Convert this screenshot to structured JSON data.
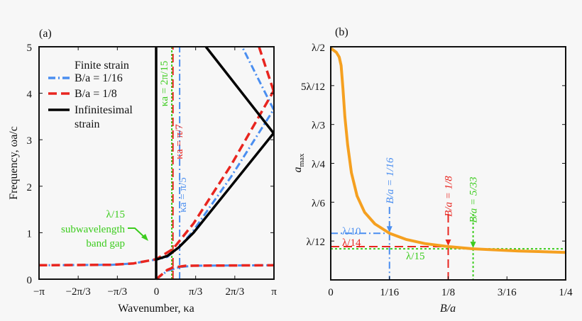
{
  "colors": {
    "blue": "#4a8ef0",
    "red": "#e8251f",
    "green": "#3ccc1e",
    "black": "#000000",
    "orange": "#f5a020"
  },
  "chart_data": [
    {
      "type": "line",
      "panel_label": "(a)",
      "xlabel": "Wavenumber, κa",
      "ylabel": "Frequency, ωa/c",
      "xlim_over_pi": [
        -1,
        1
      ],
      "ylim": [
        0,
        5
      ],
      "xtick_labels": [
        "−π",
        "−2π/3",
        "−π/3",
        "0",
        "π/3",
        "2π/3",
        "π"
      ],
      "ytick_labels": [
        "0",
        "1",
        "2",
        "3",
        "4",
        "5"
      ],
      "legend": {
        "title": "Finite strain",
        "entries": [
          "B/a = 1/16",
          "B/a = 1/8",
          "Infinitesimal",
          "strain"
        ],
        "placement": "top-left"
      },
      "series": [
        {
          "name": "B/a = 1/16",
          "color": "blue",
          "style": "dashdot",
          "branches": [
            [
              [
                -3.1416,
                0.3
              ],
              [
                -1.2,
                0.31
              ],
              [
                -0.6,
                0.34
              ],
              [
                -0.2,
                0.4
              ],
              [
                0,
                0.42
              ],
              [
                0.3,
                0.48
              ],
              [
                0.628,
                0.7
              ],
              [
                1.0,
                1.05
              ],
              [
                2.0,
                2.2
              ],
              [
                3.1416,
                3.65
              ]
            ],
            [
              [
                0,
                0
              ],
              [
                0.3,
                0.18
              ],
              [
                0.628,
                0.26
              ],
              [
                1.0,
                0.29
              ],
              [
                3.1416,
                0.3
              ]
            ],
            [
              [
                3.1416,
                3.65
              ],
              [
                2.3,
                5
              ]
            ],
            [
              [
                0.628,
                0
              ],
              [
                0.628,
                5
              ]
            ]
          ]
        },
        {
          "name": "B/a = 1/8",
          "color": "red",
          "style": "dashed",
          "branches": [
            [
              [
                -3.1416,
                0.3
              ],
              [
                -1.2,
                0.31
              ],
              [
                -0.6,
                0.34
              ],
              [
                -0.2,
                0.4
              ],
              [
                0,
                0.43
              ],
              [
                0.449,
                0.65
              ],
              [
                1.0,
                1.2
              ],
              [
                2.0,
                2.45
              ],
              [
                3.1416,
                4.05
              ]
            ],
            [
              [
                0,
                0
              ],
              [
                0.3,
                0.2
              ],
              [
                0.449,
                0.25
              ],
              [
                0.8,
                0.29
              ],
              [
                3.1416,
                0.3
              ]
            ],
            [
              [
                3.1416,
                4.05
              ],
              [
                2.75,
                5
              ]
            ],
            [
              [
                0.449,
                0
              ],
              [
                0.449,
                5
              ]
            ]
          ]
        },
        {
          "name": "Infinitesimal strain",
          "color": "black",
          "style": "solid",
          "branches": [
            [
              [
                0,
                0.42
              ],
              [
                0.3,
                0.5
              ],
              [
                0.6,
                0.68
              ],
              [
                1.0,
                1.0
              ],
              [
                2.0,
                2.0
              ],
              [
                3.1416,
                3.14
              ]
            ],
            [
              [
                3.1416,
                3.14
              ],
              [
                1.33,
                5
              ]
            ],
            [
              [
                0,
                0
              ],
              [
                0,
                5
              ]
            ]
          ]
        }
      ],
      "annotations": [
        {
          "text": "κa = 2π/15",
          "color": "green",
          "x": 0.419
        },
        {
          "text": "κa = π/7",
          "color": "red",
          "x": 0.449
        },
        {
          "text": "κa = π/5",
          "color": "blue",
          "x": 0.628
        },
        {
          "text": "λ/15",
          "color": "green"
        },
        {
          "text": "subwavelength",
          "color": "green"
        },
        {
          "text": "band gap",
          "color": "green"
        }
      ]
    },
    {
      "type": "line",
      "panel_label": "(b)",
      "xlabel": "B/a",
      "ylabel": "a_max",
      "xlim": [
        0,
        0.25
      ],
      "ylim_in_lambda": [
        0,
        0.5
      ],
      "xtick_labels": [
        "0",
        "1/16",
        "1/8",
        "3/16",
        "1/4"
      ],
      "ytick_labels": [
        "",
        "λ/12",
        "λ/6",
        "λ/4",
        "λ/3",
        "5λ/12",
        "λ/2"
      ],
      "ylabel_main": "a",
      "ylabel_sub": "max",
      "series": [
        {
          "color": "orange",
          "style": "solid",
          "points": [
            [
              0,
              0.497
            ],
            [
              0.006,
              0.488
            ],
            [
              0.009,
              0.478
            ],
            [
              0.011,
              0.46
            ],
            [
              0.013,
              0.41
            ],
            [
              0.015,
              0.35
            ],
            [
              0.018,
              0.29
            ],
            [
              0.022,
              0.23
            ],
            [
              0.028,
              0.18
            ],
            [
              0.036,
              0.145
            ],
            [
              0.047,
              0.12
            ],
            [
              0.0625,
              0.1
            ],
            [
              0.08,
              0.087
            ],
            [
              0.1,
              0.078
            ],
            [
              0.125,
              0.0714
            ],
            [
              0.1515,
              0.0667
            ],
            [
              0.2,
              0.062
            ],
            [
              0.25,
              0.059
            ]
          ]
        }
      ],
      "annotations": [
        {
          "text": "B/a = 1/16",
          "color": "blue",
          "x": 0.0625,
          "y": 0.1,
          "hlabel": "λ/10",
          "style": "dashdot"
        },
        {
          "text": "B/a = 1/8",
          "color": "red",
          "x": 0.125,
          "y": 0.0714,
          "hlabel": "λ/14",
          "style": "dashed"
        },
        {
          "text": "B/a = 5/33",
          "color": "green",
          "x": 0.1515,
          "y": 0.0667,
          "hlabel": "λ/15",
          "style": "dotted"
        }
      ]
    }
  ]
}
